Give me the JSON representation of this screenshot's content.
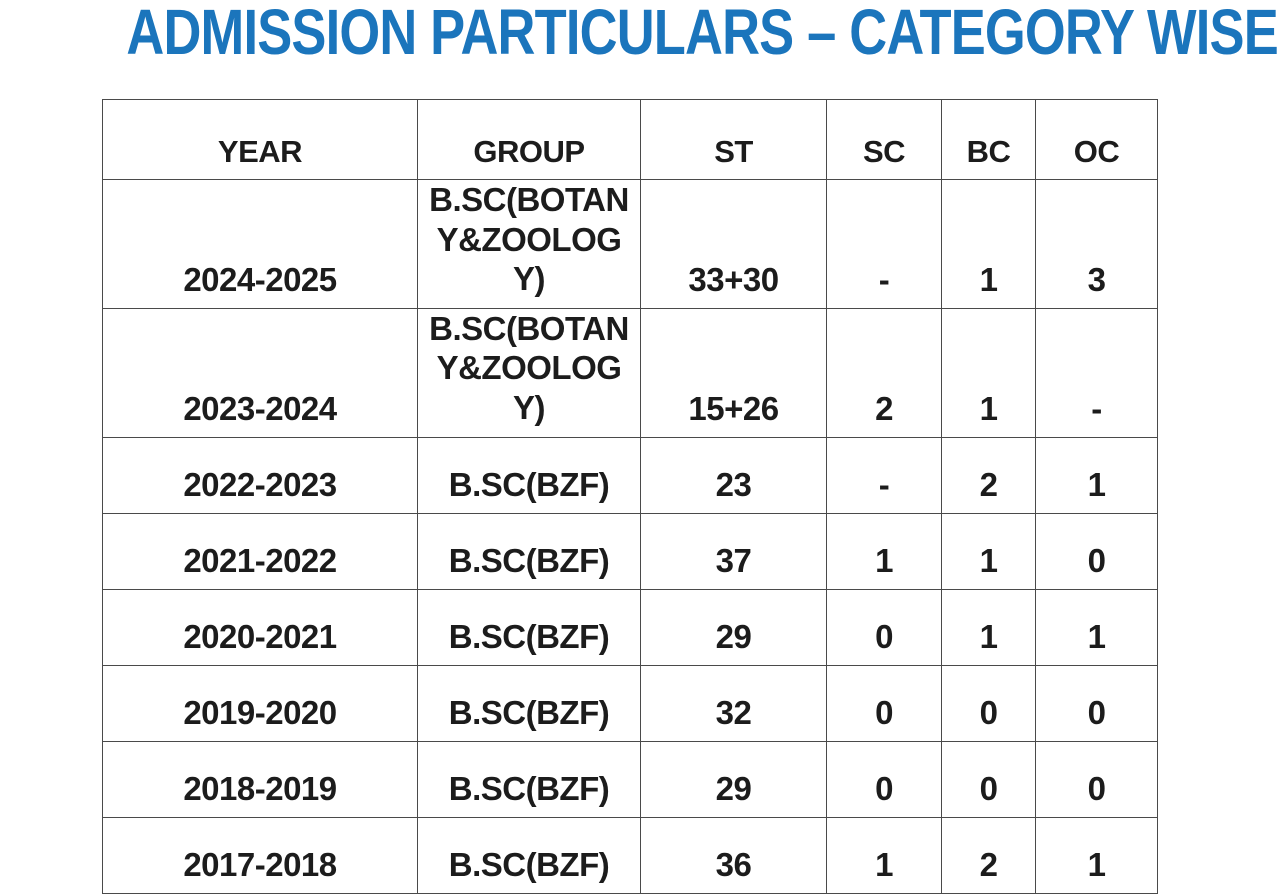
{
  "title": "ADMISSION PARTICULARS – CATEGORY WISE",
  "colors": {
    "title_blue": "#1B75BC",
    "table_border": "#4a4a4a",
    "text": "#1c1c1c",
    "background": "#ffffff"
  },
  "table": {
    "headers": [
      "YEAR",
      "GROUP",
      "ST",
      "SC",
      "BC",
      "OC"
    ],
    "rows": [
      {
        "year": "2024-2025",
        "group": "B.SC(BOTANY&ZOOLOGY)",
        "st": "33+30",
        "sc": "-",
        "bc": "1",
        "oc": "3"
      },
      {
        "year": "2023-2024",
        "group": "B.SC(BOTANY&ZOOLOGY)",
        "st": "15+26",
        "sc": "2",
        "bc": "1",
        "oc": "-"
      },
      {
        "year": "2022-2023",
        "group": "B.SC(BZF)",
        "st": "23",
        "sc": "-",
        "bc": "2",
        "oc": "1"
      },
      {
        "year": "2021-2022",
        "group": "B.SC(BZF)",
        "st": "37",
        "sc": "1",
        "bc": "1",
        "oc": "0"
      },
      {
        "year": "2020-2021",
        "group": "B.SC(BZF)",
        "st": "29",
        "sc": "0",
        "bc": "1",
        "oc": "1"
      },
      {
        "year": "2019-2020",
        "group": "B.SC(BZF)",
        "st": "32",
        "sc": "0",
        "bc": "0",
        "oc": "0"
      },
      {
        "year": "2018-2019",
        "group": "B.SC(BZF)",
        "st": "29",
        "sc": "0",
        "bc": "0",
        "oc": "0"
      },
      {
        "year": "2017-2018",
        "group": "B.SC(BZF)",
        "st": "36",
        "sc": "1",
        "bc": "2",
        "oc": "1"
      }
    ]
  }
}
